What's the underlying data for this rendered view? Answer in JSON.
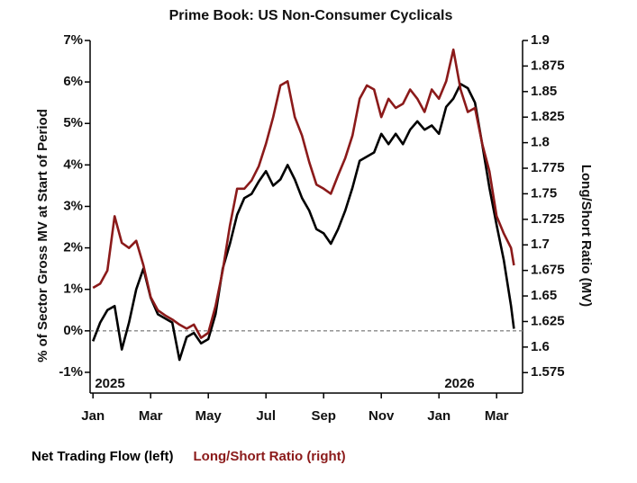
{
  "chart_data": {
    "type": "line",
    "title": "Prime Book: US Non-Consumer Cyclicals",
    "ylabel": "% of Sector Gross MV at Start of Period",
    "y2label": "Long/Short Ratio (MV)",
    "annotations": [
      "2025",
      "2026"
    ],
    "x": [
      0,
      0.25,
      0.5,
      0.75,
      1,
      1.25,
      1.5,
      1.75,
      2,
      2.25,
      2.5,
      2.75,
      3,
      3.25,
      3.5,
      3.75,
      4,
      4.25,
      4.5,
      4.75,
      5,
      5.25,
      5.5,
      5.75,
      6,
      6.25,
      6.5,
      6.75,
      7,
      7.25,
      7.5,
      7.75,
      8,
      8.25,
      8.5,
      8.75,
      9,
      9.25,
      9.5,
      9.75,
      10,
      10.25,
      10.5,
      10.75,
      11,
      11.25,
      11.5,
      11.75,
      12,
      12.25,
      12.5,
      12.75,
      13,
      13.25,
      13.5,
      13.75,
      14,
      14.25,
      14.5,
      14.6
    ],
    "xlim": [
      -0.1,
      14.9
    ],
    "xticks": [
      {
        "value": 0,
        "label": "Jan"
      },
      {
        "value": 2,
        "label": "Mar"
      },
      {
        "value": 4,
        "label": "May"
      },
      {
        "value": 6,
        "label": "Jul"
      },
      {
        "value": 8,
        "label": "Sep"
      },
      {
        "value": 10,
        "label": "Nov"
      },
      {
        "value": 12,
        "label": "Jan"
      },
      {
        "value": 14,
        "label": "Mar"
      }
    ],
    "ylim": [
      -1.5,
      7
    ],
    "yticks": [
      {
        "value": -1,
        "label": "-1%"
      },
      {
        "value": 0,
        "label": "0%"
      },
      {
        "value": 1,
        "label": "1%"
      },
      {
        "value": 2,
        "label": "2%"
      },
      {
        "value": 3,
        "label": "3%"
      },
      {
        "value": 4,
        "label": "4%"
      },
      {
        "value": 5,
        "label": "5%"
      },
      {
        "value": 6,
        "label": "6%"
      },
      {
        "value": 7,
        "label": "7%"
      }
    ],
    "y2lim": [
      1.555,
      1.9
    ],
    "y2ticks": [
      1.575,
      1.6,
      1.625,
      1.65,
      1.675,
      1.7,
      1.725,
      1.75,
      1.775,
      1.8,
      1.825,
      1.85,
      1.875,
      1.9
    ],
    "reference_line": 0,
    "series": [
      {
        "name": "Net Trading Flow (left)",
        "color": "#000000",
        "values": [
          -0.25,
          0.2,
          0.5,
          0.6,
          -0.45,
          0.2,
          1.0,
          1.5,
          0.8,
          0.4,
          0.3,
          0.2,
          -0.7,
          -0.15,
          -0.05,
          -0.3,
          -0.2,
          0.4,
          1.5,
          2.1,
          2.8,
          3.2,
          3.3,
          3.6,
          3.85,
          3.5,
          3.65,
          4.0,
          3.65,
          3.2,
          2.9,
          2.45,
          2.35,
          2.1,
          2.45,
          2.9,
          3.45,
          4.1,
          4.2,
          4.3,
          4.75,
          4.5,
          4.75,
          4.5,
          4.85,
          5.05,
          4.85,
          4.95,
          4.75,
          5.4,
          5.6,
          5.95,
          5.85,
          5.5,
          4.5,
          3.45,
          2.55,
          1.7,
          0.6,
          0.05
        ]
      },
      {
        "name": "Long/Short Ratio (right)",
        "color": "#8b1a1a",
        "axis": "y2",
        "values": [
          1.658,
          1.662,
          1.675,
          1.728,
          1.702,
          1.697,
          1.704,
          1.68,
          1.649,
          1.636,
          1.631,
          1.627,
          1.622,
          1.618,
          1.622,
          1.609,
          1.614,
          1.64,
          1.675,
          1.719,
          1.755,
          1.755,
          1.763,
          1.777,
          1.799,
          1.825,
          1.856,
          1.86,
          1.825,
          1.807,
          1.781,
          1.759,
          1.755,
          1.75,
          1.768,
          1.785,
          1.807,
          1.843,
          1.856,
          1.852,
          1.825,
          1.843,
          1.834,
          1.838,
          1.852,
          1.843,
          1.83,
          1.852,
          1.843,
          1.86,
          1.891,
          1.852,
          1.83,
          1.834,
          1.799,
          1.772,
          1.728,
          1.711,
          1.697,
          1.68
        ]
      }
    ]
  }
}
